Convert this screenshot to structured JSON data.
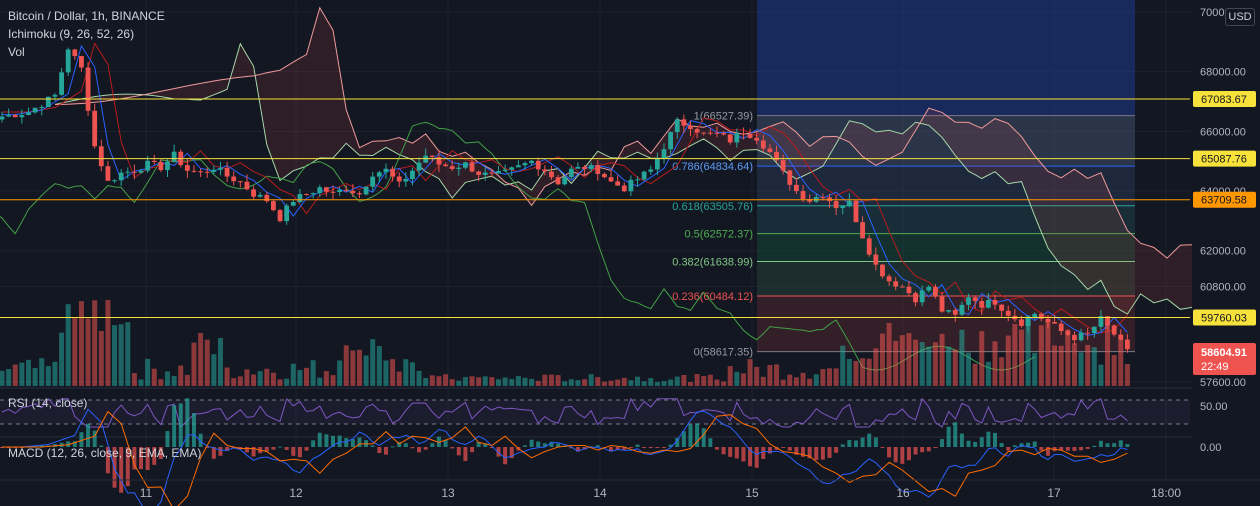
{
  "legend": {
    "title": "Bitcoin / Dollar, 1h, BINANCE",
    "ichimoku": "Ichimoku (9, 26, 52, 26)",
    "volume": "Vol",
    "rsi": "RSI (14, close)",
    "macd": "MACD (12, 26, close, 9, EMA, EMA)"
  },
  "currency": "USD",
  "colors": {
    "background": "#131722",
    "up": "#26a69a",
    "down": "#ef5350",
    "level_line": "#f7e13b",
    "orange_level": "#ff9800",
    "fib_top_box": "#1e3a8a",
    "rsi_line": "#7e57c2",
    "macd_line": "#2962ff",
    "signal_line": "#ff6d00"
  },
  "chart_data": {
    "type": "candlestick",
    "price_axis": {
      "ticks": [
        "70000.00",
        "68000.00",
        "66000.00",
        "64000.00",
        "62000.00",
        "60800.00",
        "57600.00"
      ],
      "ylim": [
        57200,
        70200
      ]
    },
    "time_axis": {
      "ticks": [
        "11",
        "12",
        "13",
        "14",
        "15",
        "16",
        "17",
        "18:00"
      ]
    },
    "current_price": {
      "value": "58604.91",
      "countdown": "22:49"
    },
    "horizontal_levels": [
      {
        "value": 67083.67,
        "label": "67083.67",
        "color": "yellow"
      },
      {
        "value": 65087.76,
        "label": "65087.76",
        "color": "yellow"
      },
      {
        "value": 63709.58,
        "label": "63709.58",
        "color": "orange"
      },
      {
        "value": 59760.03,
        "label": "59760.03",
        "color": "yellow"
      }
    ],
    "fibonacci": [
      {
        "ratio": "1",
        "value": 66527.39,
        "label": "1(66527.39)"
      },
      {
        "ratio": "0.786",
        "value": 64834.64,
        "label": "0.786(64834.64)"
      },
      {
        "ratio": "0.618",
        "value": 63505.76,
        "label": "0.618(63505.76)"
      },
      {
        "ratio": "0.5",
        "value": 62572.37,
        "label": "0.5(62572.37)"
      },
      {
        "ratio": "0.382",
        "value": 61638.99,
        "label": "0.382(61638.99)"
      },
      {
        "ratio": "0.236",
        "value": 60484.12,
        "label": "0.236(60484.12)"
      },
      {
        "ratio": "0",
        "value": 58617.35,
        "label": "0(58617.35)"
      }
    ],
    "price_path": [
      [
        0,
        66500
      ],
      [
        4,
        66650
      ],
      [
        8,
        67200
      ],
      [
        10,
        68800
      ],
      [
        12,
        68100
      ],
      [
        14,
        65500
      ],
      [
        16,
        64300
      ],
      [
        18,
        64600
      ],
      [
        20,
        64700
      ],
      [
        22,
        64900
      ],
      [
        24,
        64800
      ],
      [
        26,
        65200
      ],
      [
        28,
        64700
      ],
      [
        30,
        64600
      ],
      [
        32,
        64800
      ],
      [
        34,
        64500
      ],
      [
        36,
        64300
      ],
      [
        38,
        63900
      ],
      [
        40,
        63700
      ],
      [
        42,
        63100
      ],
      [
        44,
        63700
      ],
      [
        46,
        63900
      ],
      [
        48,
        64100
      ],
      [
        50,
        63900
      ],
      [
        52,
        64100
      ],
      [
        54,
        63900
      ],
      [
        56,
        64600
      ],
      [
        58,
        64700
      ],
      [
        60,
        64200
      ],
      [
        62,
        64700
      ],
      [
        64,
        65200
      ],
      [
        66,
        64900
      ],
      [
        68,
        64800
      ],
      [
        70,
        64900
      ],
      [
        72,
        64600
      ],
      [
        74,
        64500
      ],
      [
        76,
        64600
      ],
      [
        78,
        64800
      ],
      [
        80,
        65000
      ],
      [
        82,
        64700
      ],
      [
        84,
        64300
      ],
      [
        86,
        64700
      ],
      [
        88,
        64800
      ],
      [
        90,
        64700
      ],
      [
        92,
        64300
      ],
      [
        94,
        64100
      ],
      [
        96,
        64400
      ],
      [
        98,
        64700
      ],
      [
        100,
        65500
      ],
      [
        102,
        66300
      ],
      [
        104,
        66200
      ],
      [
        106,
        65900
      ],
      [
        108,
        65900
      ],
      [
        110,
        65700
      ],
      [
        112,
        66000
      ],
      [
        114,
        65800
      ],
      [
        116,
        65300
      ],
      [
        118,
        64600
      ],
      [
        120,
        64000
      ],
      [
        122,
        63700
      ],
      [
        124,
        63900
      ],
      [
        126,
        63500
      ],
      [
        128,
        63600
      ],
      [
        130,
        62500
      ],
      [
        132,
        61500
      ],
      [
        134,
        61000
      ],
      [
        136,
        60800
      ],
      [
        138,
        60400
      ],
      [
        140,
        60800
      ],
      [
        142,
        60000
      ],
      [
        144,
        59800
      ],
      [
        146,
        60500
      ],
      [
        148,
        60200
      ],
      [
        150,
        60300
      ],
      [
        152,
        59900
      ],
      [
        154,
        59600
      ],
      [
        156,
        59900
      ],
      [
        158,
        59600
      ],
      [
        160,
        59300
      ],
      [
        162,
        59100
      ],
      [
        164,
        59200
      ],
      [
        166,
        59700
      ],
      [
        168,
        59200
      ],
      [
        170,
        58600
      ]
    ],
    "rsi": {
      "ticks": [
        "50.00"
      ],
      "upper": 70,
      "lower": 30
    },
    "macd": {
      "ticks": [
        "0.00"
      ]
    }
  }
}
